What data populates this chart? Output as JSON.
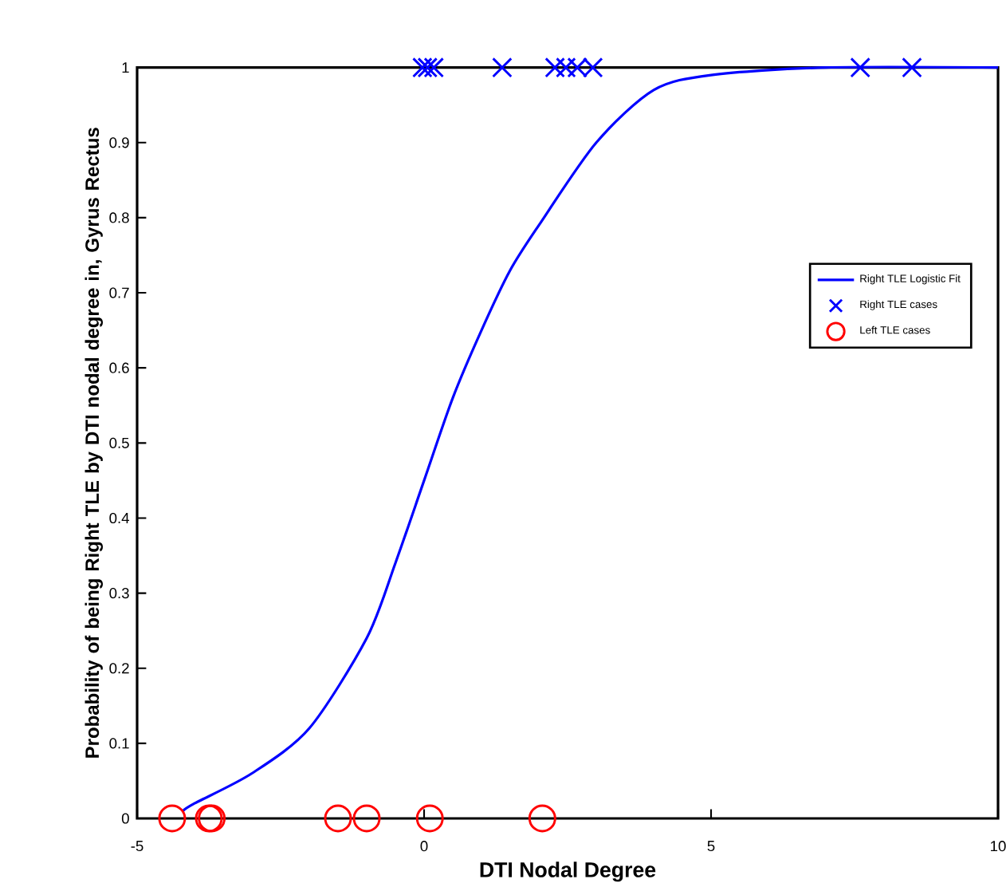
{
  "chart_data": {
    "type": "scatter",
    "xlabel": "DTI Nodal Degree",
    "ylabel": "Probability of being Right TLE by DTI nodal degree in, Gyrus Rectus",
    "xlim": [
      -5,
      10
    ],
    "ylim": [
      0,
      1
    ],
    "xticks": [
      -5,
      0,
      5,
      10
    ],
    "yticks": [
      0,
      0.1,
      0.2,
      0.3,
      0.4,
      0.5,
      0.6,
      0.7,
      0.8,
      0.9,
      1
    ],
    "grid": false,
    "legend": "right",
    "series": [
      {
        "name": "Right TLE Logistic Fit",
        "type": "line",
        "color": "#0000ff",
        "marker": "none",
        "line_style": "solid",
        "x": [
          -4.2,
          -4,
          -3,
          -2,
          -1,
          -0.5,
          0,
          0.5,
          1,
          1.5,
          2,
          3,
          4,
          5,
          7,
          10
        ],
        "values": [
          0.01,
          0.02,
          0.06,
          0.12,
          0.24,
          0.34,
          0.45,
          0.56,
          0.65,
          0.73,
          0.79,
          0.9,
          0.97,
          0.99,
          1,
          1
        ]
      },
      {
        "name": "Right TLE cases",
        "type": "scatter",
        "color": "#0000ff",
        "marker": "cross",
        "x": [
          -0.03,
          0.06,
          0.17,
          1.36,
          2.28,
          2.47,
          2.67,
          2.94,
          7.6,
          8.5
        ],
        "values": [
          1,
          1,
          1,
          1,
          1,
          1,
          1,
          1,
          1,
          1
        ]
      },
      {
        "name": "Left TLE cases",
        "type": "scatter",
        "color": "#ff0000",
        "marker": "circle",
        "x": [
          -4.39,
          -3.75,
          -3.7,
          -1.5,
          -1.0,
          0.1,
          2.06
        ],
        "values": [
          0,
          0,
          0,
          0,
          0,
          0,
          0
        ]
      }
    ]
  }
}
